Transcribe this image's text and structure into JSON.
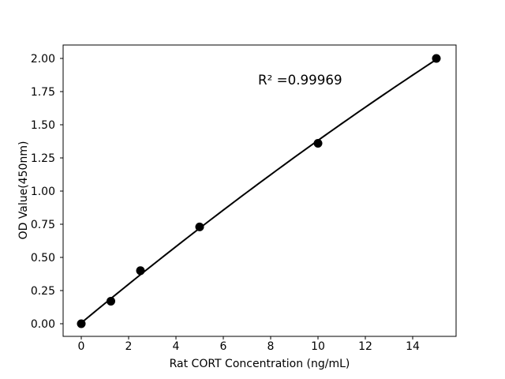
{
  "figure": {
    "background_color": "#ffffff",
    "foreground_color": "#000000"
  },
  "chart_data": {
    "type": "scatter",
    "title": "",
    "xlabel": "Rat CORT Concentration (ng/mL)",
    "ylabel": "OD Value(450nm)",
    "annotation": "R² =0.99969",
    "x": [
      0,
      1.25,
      2.5,
      5,
      10,
      15
    ],
    "y": [
      0.0,
      0.17,
      0.4,
      0.73,
      1.36,
      2.0
    ],
    "xticks": [
      0,
      2,
      4,
      6,
      8,
      10,
      12,
      14
    ],
    "xtick_labels": [
      "0",
      "2",
      "4",
      "6",
      "8",
      "10",
      "12",
      "14"
    ],
    "yticks": [
      0.0,
      0.25,
      0.5,
      0.75,
      1.0,
      1.25,
      1.5,
      1.75,
      2.0
    ],
    "ytick_labels": [
      "0.00",
      "0.25",
      "0.50",
      "0.75",
      "1.00",
      "1.25",
      "1.50",
      "1.75",
      "2.00"
    ],
    "xlim": [
      -0.7667,
      15.8333
    ],
    "ylim": [
      -0.0952,
      2.1012
    ],
    "fit": "quadratic",
    "curve_x_range": [
      0,
      15
    ],
    "grid": false,
    "legend": null,
    "marker_color": "#000000",
    "line_color": "#000000",
    "frame_color": "#000000"
  }
}
